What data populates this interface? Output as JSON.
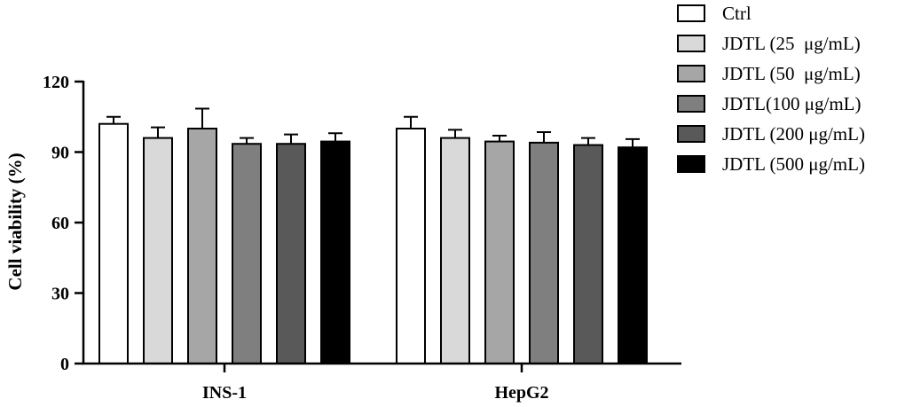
{
  "chart_data": {
    "type": "bar",
    "title": "",
    "xlabel": "",
    "ylabel": "Cell viability (%)",
    "ylim": [
      0,
      120
    ],
    "yticks": [
      0,
      30,
      60,
      90,
      120
    ],
    "grid": false,
    "legend_position": "top-right",
    "categories": [
      "INS-1",
      "HepG2"
    ],
    "series": [
      {
        "name": "Ctrl",
        "color": "#ffffff",
        "values": [
          102,
          100
        ],
        "errors": [
          3,
          5
        ]
      },
      {
        "name": "JDTL (25  μg/mL)",
        "color": "#d9d9d9",
        "values": [
          96,
          96
        ],
        "errors": [
          4.5,
          3.5
        ]
      },
      {
        "name": "JDTL (50  μg/mL)",
        "color": "#a6a6a6",
        "values": [
          100,
          94.5
        ],
        "errors": [
          8.5,
          2.5
        ]
      },
      {
        "name": "JDTL(100 μg/mL)",
        "color": "#7f7f7f",
        "values": [
          93.5,
          94
        ],
        "errors": [
          2.5,
          4.5
        ]
      },
      {
        "name": "JDTL (200 μg/mL)",
        "color": "#595959",
        "values": [
          93.5,
          93
        ],
        "errors": [
          4,
          3
        ]
      },
      {
        "name": "JDTL (500 μg/mL)",
        "color": "#000000",
        "values": [
          94.5,
          92
        ],
        "errors": [
          3.5,
          3.5
        ]
      }
    ]
  }
}
